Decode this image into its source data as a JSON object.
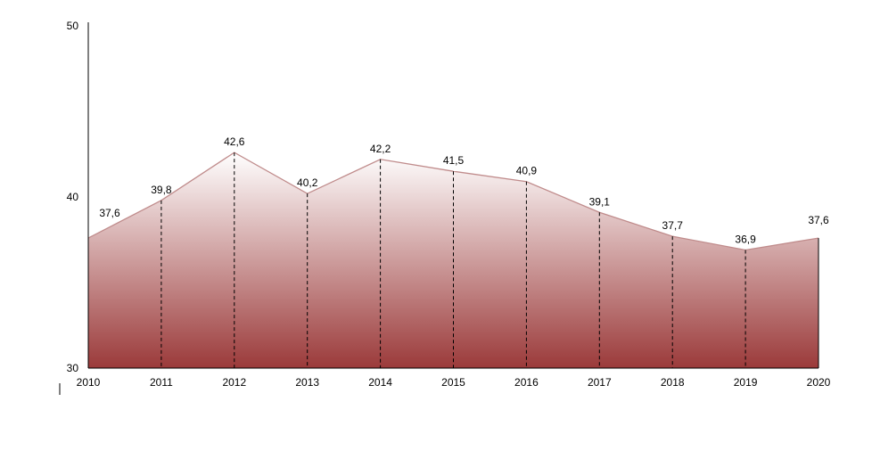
{
  "chart_data": {
    "type": "area",
    "categories": [
      "2010",
      "2011",
      "2012",
      "2013",
      "2014",
      "2015",
      "2016",
      "2017",
      "2018",
      "2019",
      "2020"
    ],
    "series": [
      {
        "values": [
          37.6,
          39.8,
          42.6,
          40.2,
          42.2,
          41.5,
          40.9,
          39.1,
          37.7,
          36.9,
          37.6
        ]
      }
    ],
    "data_labels": [
      "37,6",
      "39,8",
      "42,6",
      "40,2",
      "42,2",
      "41,5",
      "40,9",
      "39,1",
      "37,7",
      "36,9",
      "37,6"
    ],
    "yticks": [
      "30",
      "40",
      "50"
    ],
    "ylim": [
      30,
      50
    ],
    "title": "",
    "xlabel": "",
    "ylabel": "",
    "grid": false,
    "drop_lines": true,
    "colors": {
      "line": "#c08c8c",
      "fill_top": "#ffffff",
      "fill_bottom": "#9b3a3a",
      "axis": "#000000"
    }
  }
}
